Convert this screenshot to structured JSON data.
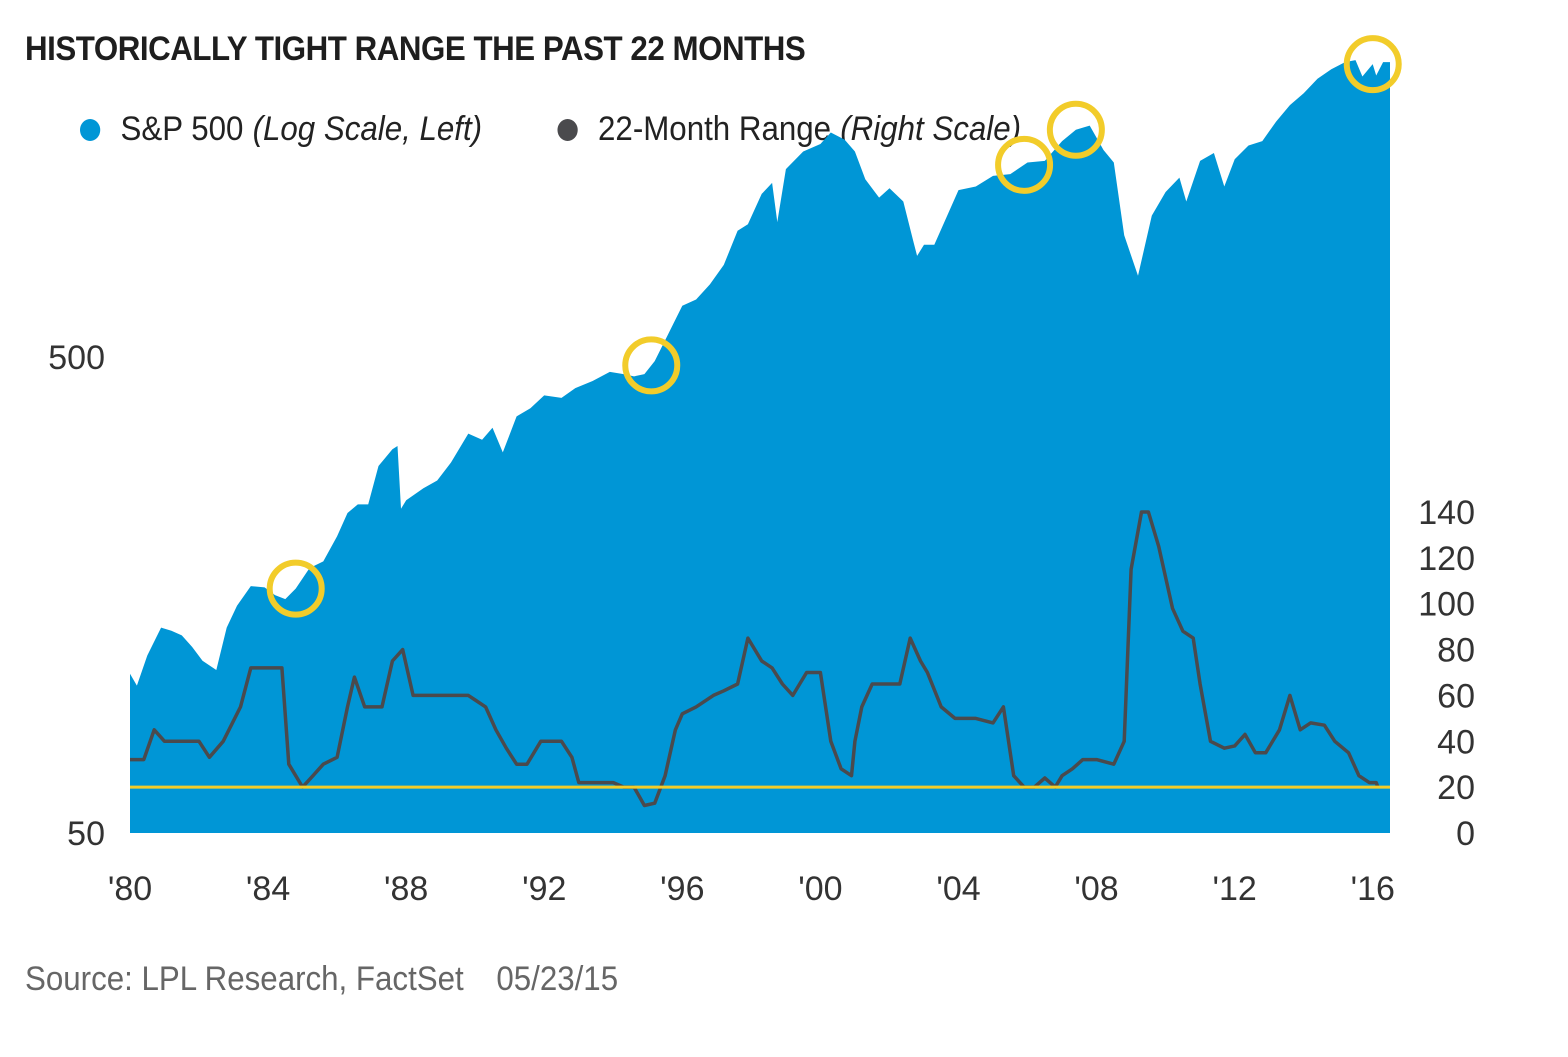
{
  "title": "HISTORICALLY TIGHT RANGE THE PAST 22 MONTHS",
  "source": {
    "text": "Source: LPL Research, FactSet",
    "date": "05/23/15"
  },
  "colors": {
    "sp500": "#0096d6",
    "range": "#4a4a4d",
    "highlight": "#f2cc2a",
    "title": "#1e1e1e"
  },
  "chart_data": {
    "type": "area",
    "title": "HISTORICALLY TIGHT RANGE THE PAST 22 MONTHS",
    "legend": "top-left",
    "grid": false,
    "x_ticks": [
      "'80",
      "'84",
      "'88",
      "'92",
      "'96",
      "'00",
      "'04",
      "'08",
      "'12",
      "'16"
    ],
    "x_tick_values": [
      1980,
      1984,
      1988,
      1992,
      1996,
      2000,
      2004,
      2008,
      2012,
      2016
    ],
    "xlim": [
      1980,
      2016.5
    ],
    "left_axis": {
      "ticks": [
        "50",
        "500"
      ],
      "tick_values": [
        50,
        500
      ],
      "scale": "log",
      "ylim": [
        50,
        2550
      ]
    },
    "right_axis": {
      "ticks": [
        "0",
        "20",
        "40",
        "60",
        "80",
        "100",
        "120",
        "140"
      ],
      "tick_values": [
        0,
        20,
        40,
        60,
        80,
        100,
        120,
        140
      ],
      "ylim": [
        0,
        140
      ]
    },
    "series": [
      {
        "name": "S&P 500",
        "note": "(Log Scale, Left)",
        "type": "area",
        "axis": "left",
        "points": [
          [
            1980.0,
            108
          ],
          [
            1980.2,
            102
          ],
          [
            1980.5,
            118
          ],
          [
            1980.9,
            135
          ],
          [
            1981.2,
            133
          ],
          [
            1981.5,
            130
          ],
          [
            1981.8,
            123
          ],
          [
            1982.1,
            115
          ],
          [
            1982.5,
            110
          ],
          [
            1982.8,
            135
          ],
          [
            1983.1,
            150
          ],
          [
            1983.5,
            165
          ],
          [
            1983.9,
            164
          ],
          [
            1984.2,
            158
          ],
          [
            1984.5,
            155
          ],
          [
            1984.8,
            163
          ],
          [
            1985.2,
            180
          ],
          [
            1985.6,
            186
          ],
          [
            1986.0,
            210
          ],
          [
            1986.3,
            235
          ],
          [
            1986.6,
            245
          ],
          [
            1986.9,
            245
          ],
          [
            1987.2,
            295
          ],
          [
            1987.6,
            320
          ],
          [
            1987.75,
            325
          ],
          [
            1987.85,
            240
          ],
          [
            1988.0,
            250
          ],
          [
            1988.5,
            265
          ],
          [
            1988.9,
            275
          ],
          [
            1989.3,
            300
          ],
          [
            1989.8,
            345
          ],
          [
            1990.2,
            335
          ],
          [
            1990.5,
            355
          ],
          [
            1990.8,
            315
          ],
          [
            1991.2,
            375
          ],
          [
            1991.6,
            390
          ],
          [
            1992.0,
            415
          ],
          [
            1992.5,
            410
          ],
          [
            1992.9,
            430
          ],
          [
            1993.4,
            445
          ],
          [
            1993.9,
            465
          ],
          [
            1994.3,
            460
          ],
          [
            1994.6,
            455
          ],
          [
            1994.9,
            460
          ],
          [
            1995.2,
            490
          ],
          [
            1995.6,
            560
          ],
          [
            1996.0,
            640
          ],
          [
            1996.4,
            660
          ],
          [
            1996.8,
            710
          ],
          [
            1997.2,
            780
          ],
          [
            1997.6,
            920
          ],
          [
            1997.9,
            950
          ],
          [
            1998.3,
            1100
          ],
          [
            1998.6,
            1160
          ],
          [
            1998.75,
            960
          ],
          [
            1999.0,
            1240
          ],
          [
            1999.5,
            1350
          ],
          [
            2000.0,
            1400
          ],
          [
            2000.3,
            1480
          ],
          [
            2000.7,
            1430
          ],
          [
            2001.0,
            1350
          ],
          [
            2001.3,
            1180
          ],
          [
            2001.7,
            1080
          ],
          [
            2002.0,
            1130
          ],
          [
            2002.4,
            1060
          ],
          [
            2002.7,
            870
          ],
          [
            2002.8,
            815
          ],
          [
            2003.0,
            860
          ],
          [
            2003.3,
            860
          ],
          [
            2003.7,
            1000
          ],
          [
            2004.0,
            1120
          ],
          [
            2004.5,
            1140
          ],
          [
            2005.0,
            1200
          ],
          [
            2005.5,
            1210
          ],
          [
            2006.0,
            1280
          ],
          [
            2006.5,
            1290
          ],
          [
            2007.0,
            1420
          ],
          [
            2007.4,
            1500
          ],
          [
            2007.8,
            1530
          ],
          [
            2008.2,
            1360
          ],
          [
            2008.5,
            1280
          ],
          [
            2008.8,
            900
          ],
          [
            2009.2,
            740
          ],
          [
            2009.6,
            990
          ],
          [
            2010.0,
            1110
          ],
          [
            2010.4,
            1190
          ],
          [
            2010.6,
            1060
          ],
          [
            2011.0,
            1290
          ],
          [
            2011.4,
            1340
          ],
          [
            2011.7,
            1140
          ],
          [
            2012.0,
            1300
          ],
          [
            2012.4,
            1390
          ],
          [
            2012.8,
            1420
          ],
          [
            2013.2,
            1560
          ],
          [
            2013.6,
            1690
          ],
          [
            2014.0,
            1790
          ],
          [
            2014.4,
            1920
          ],
          [
            2014.8,
            2010
          ],
          [
            2015.2,
            2080
          ],
          [
            2015.5,
            2100
          ],
          [
            2015.7,
            1940
          ],
          [
            2016.0,
            2060
          ],
          [
            2016.1,
            1950
          ],
          [
            2016.3,
            2080
          ],
          [
            2016.5,
            2080
          ]
        ]
      },
      {
        "name": "22-Month Range",
        "note": "(Right Scale)",
        "type": "line",
        "axis": "right",
        "points": [
          [
            1980.0,
            32
          ],
          [
            1980.4,
            32
          ],
          [
            1980.7,
            45
          ],
          [
            1981.0,
            40
          ],
          [
            1981.5,
            40
          ],
          [
            1982.0,
            40
          ],
          [
            1982.3,
            33
          ],
          [
            1982.7,
            40
          ],
          [
            1983.2,
            55
          ],
          [
            1983.5,
            72
          ],
          [
            1984.0,
            72
          ],
          [
            1984.4,
            72
          ],
          [
            1984.6,
            30
          ],
          [
            1985.0,
            20
          ],
          [
            1985.3,
            25
          ],
          [
            1985.6,
            30
          ],
          [
            1986.0,
            33
          ],
          [
            1986.3,
            55
          ],
          [
            1986.5,
            68
          ],
          [
            1986.8,
            55
          ],
          [
            1987.3,
            55
          ],
          [
            1987.6,
            75
          ],
          [
            1987.9,
            80
          ],
          [
            1988.2,
            60
          ],
          [
            1989.0,
            60
          ],
          [
            1989.8,
            60
          ],
          [
            1990.0,
            58
          ],
          [
            1990.3,
            55
          ],
          [
            1990.6,
            45
          ],
          [
            1990.9,
            37
          ],
          [
            1991.2,
            30
          ],
          [
            1991.5,
            30
          ],
          [
            1991.9,
            40
          ],
          [
            1992.5,
            40
          ],
          [
            1992.8,
            33
          ],
          [
            1993.0,
            22
          ],
          [
            1994.0,
            22
          ],
          [
            1994.3,
            20
          ],
          [
            1994.6,
            20
          ],
          [
            1994.9,
            12
          ],
          [
            1995.2,
            13
          ],
          [
            1995.5,
            25
          ],
          [
            1995.8,
            45
          ],
          [
            1996.0,
            52
          ],
          [
            1996.4,
            55
          ],
          [
            1996.9,
            60
          ],
          [
            1997.2,
            62
          ],
          [
            1997.6,
            65
          ],
          [
            1997.9,
            85
          ],
          [
            1998.3,
            75
          ],
          [
            1998.6,
            72
          ],
          [
            1998.9,
            65
          ],
          [
            1999.2,
            60
          ],
          [
            1999.6,
            70
          ],
          [
            2000.0,
            70
          ],
          [
            2000.3,
            40
          ],
          [
            2000.6,
            28
          ],
          [
            2000.9,
            25
          ],
          [
            2001.0,
            40
          ],
          [
            2001.2,
            55
          ],
          [
            2001.5,
            65
          ],
          [
            2001.9,
            65
          ],
          [
            2002.3,
            65
          ],
          [
            2002.6,
            85
          ],
          [
            2002.9,
            75
          ],
          [
            2003.1,
            70
          ],
          [
            2003.5,
            55
          ],
          [
            2003.9,
            50
          ],
          [
            2004.5,
            50
          ],
          [
            2005.0,
            48
          ],
          [
            2005.3,
            55
          ],
          [
            2005.6,
            25
          ],
          [
            2005.9,
            20
          ],
          [
            2006.2,
            20
          ],
          [
            2006.5,
            24
          ],
          [
            2006.8,
            20
          ],
          [
            2007.0,
            25
          ],
          [
            2007.3,
            28
          ],
          [
            2007.6,
            32
          ],
          [
            2008.0,
            32
          ],
          [
            2008.5,
            30
          ],
          [
            2008.8,
            40
          ],
          [
            2009.0,
            115
          ],
          [
            2009.3,
            140
          ],
          [
            2009.5,
            140
          ],
          [
            2009.8,
            125
          ],
          [
            2010.2,
            98
          ],
          [
            2010.5,
            88
          ],
          [
            2010.8,
            85
          ],
          [
            2011.0,
            65
          ],
          [
            2011.3,
            40
          ],
          [
            2011.7,
            37
          ],
          [
            2012.0,
            38
          ],
          [
            2012.3,
            43
          ],
          [
            2012.6,
            35
          ],
          [
            2012.9,
            35
          ],
          [
            2013.3,
            45
          ],
          [
            2013.6,
            60
          ],
          [
            2013.9,
            45
          ],
          [
            2014.2,
            48
          ],
          [
            2014.6,
            47
          ],
          [
            2014.9,
            40
          ],
          [
            2015.3,
            35
          ],
          [
            2015.6,
            25
          ],
          [
            2015.9,
            22
          ],
          [
            2016.1,
            22
          ],
          [
            2016.15,
            20
          ]
        ]
      }
    ],
    "reference_line": {
      "axis": "right",
      "value": 20
    },
    "highlights": [
      1984.8,
      1995.1,
      2005.9,
      2007.4,
      2016.0
    ]
  }
}
